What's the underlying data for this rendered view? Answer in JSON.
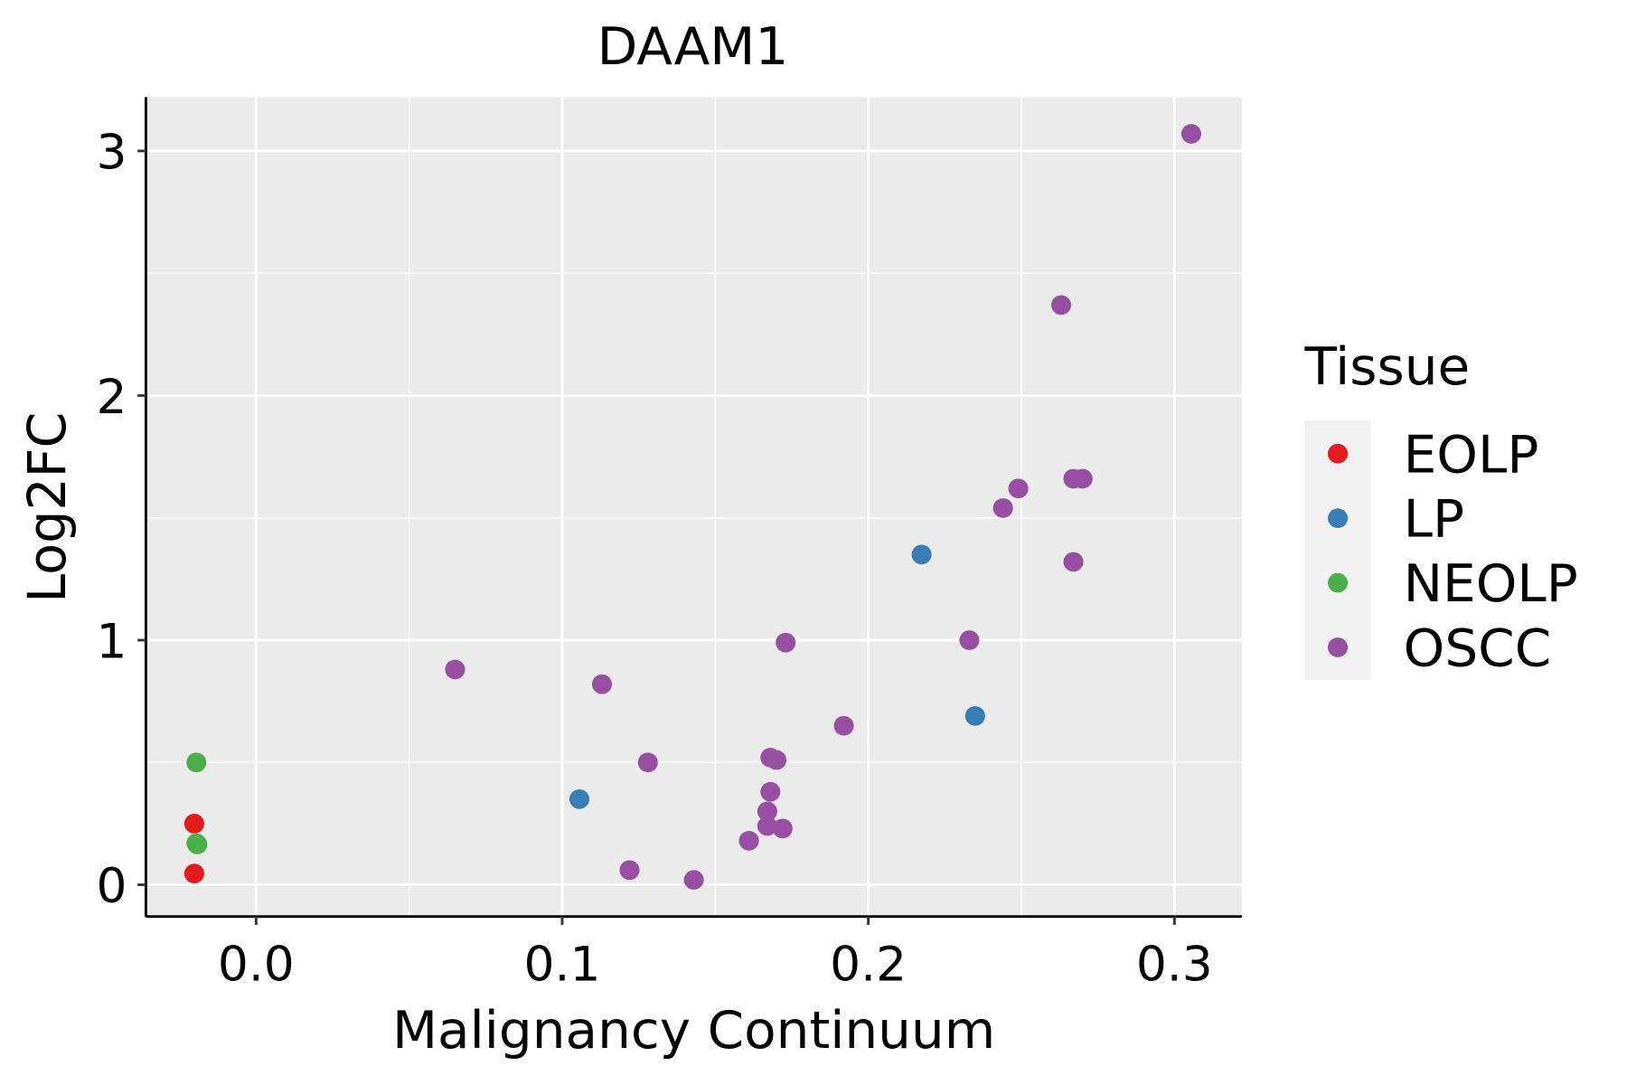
{
  "chart_data": {
    "type": "scatter",
    "title": "DAAM1",
    "xlabel": "Malignancy Continuum",
    "ylabel": "Log2FC",
    "xlim": [
      -0.036,
      0.322
    ],
    "ylim": [
      -0.13,
      3.22
    ],
    "x_ticks": [
      0.0,
      0.1,
      0.2,
      0.3
    ],
    "x_tick_labels": [
      "0.0",
      "0.1",
      "0.2",
      "0.3"
    ],
    "y_ticks": [
      0,
      1,
      2,
      3
    ],
    "y_tick_labels": [
      "0",
      "1",
      "2",
      "3"
    ],
    "grid": true,
    "legend": {
      "title": "Tissue",
      "placement": "right"
    },
    "series": [
      {
        "name": "EOLP",
        "color": "#E41A1C",
        "points": [
          [
            -0.0202,
            0.25
          ],
          [
            -0.0202,
            0.046
          ]
        ]
      },
      {
        "name": "LP",
        "color": "#377EB8",
        "points": [
          [
            0.1056,
            0.35
          ],
          [
            0.2174,
            1.35
          ],
          [
            0.2349,
            0.69
          ]
        ]
      },
      {
        "name": "NEOLP",
        "color": "#4DAF4A",
        "points": [
          [
            -0.0195,
            0.5
          ],
          [
            -0.0195,
            0.17
          ],
          [
            -0.0192,
            0.165
          ]
        ]
      },
      {
        "name": "OSCC",
        "color": "#984EA3",
        "points": [
          [
            0.3055,
            3.07
          ],
          [
            0.263,
            2.37
          ],
          [
            0.249,
            1.62
          ],
          [
            0.244,
            1.54
          ],
          [
            0.267,
            1.66
          ],
          [
            0.27,
            1.66
          ],
          [
            0.267,
            1.32
          ],
          [
            0.233,
            1.0
          ],
          [
            0.173,
            0.99
          ],
          [
            0.065,
            0.88
          ],
          [
            0.113,
            0.82
          ],
          [
            0.192,
            0.65
          ],
          [
            0.128,
            0.5
          ],
          [
            0.168,
            0.52
          ],
          [
            0.17,
            0.51
          ],
          [
            0.168,
            0.38
          ],
          [
            0.167,
            0.3
          ],
          [
            0.167,
            0.24
          ],
          [
            0.172,
            0.23
          ],
          [
            0.161,
            0.18
          ],
          [
            0.122,
            0.06
          ],
          [
            0.143,
            0.02
          ]
        ]
      }
    ]
  }
}
